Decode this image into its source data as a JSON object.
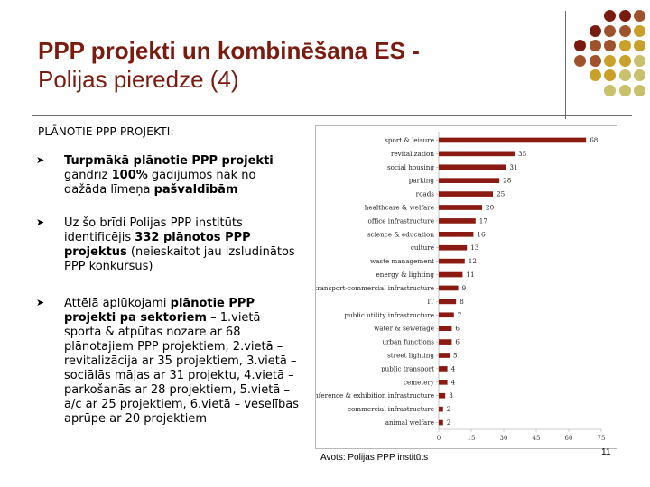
{
  "slide": {
    "title_line1": "PPP projekti un kombinēšana ES -",
    "title_line2": "Polijas pieredze (4)",
    "section_heading": "PLĀNOTIE PPP PROJEKTI:",
    "bullets": [
      [
        {
          "t": "Turpmākā plānotie PPP projekti",
          "b": true
        },
        {
          "t": " gandrīz ",
          "b": false
        },
        {
          "t": "100%",
          "b": true
        },
        {
          "t": " gadījumos nāk no dažāda līmeņa ",
          "b": false
        },
        {
          "t": "pašvaldībām",
          "b": true
        }
      ],
      [
        {
          "t": "Uz šo brīdi Polijas PPP institūts identificējis ",
          "b": false
        },
        {
          "t": "332 plānotos PPP projektus",
          "b": true
        },
        {
          "t": " (neieskaitot jau izsludinātos PPP konkursus)",
          "b": false
        }
      ],
      [
        {
          "t": "Attēlā aplūkojami ",
          "b": false
        },
        {
          "t": "plānotie PPP projekti pa sektoriem",
          "b": true
        },
        {
          "t": " – 1.vietā sporta & atpūtas nozare ar 68 plānotajiem PPP projektiem, 2.vietā – revitalizācija ar 35 projektiem, 3.vietā – sociālās mājas ar 31 projektu, 4.vietā – parkošanās ar 28 projektiem, 5.vietā – a/c ar 25 projektiem, 6.vietā – veselības aprūpe ar 20 projektiem",
          "b": false
        }
      ]
    ],
    "source": "Avots: Polijas PPP institūts",
    "page_number": "11",
    "bullet_icon": "arrowhead-bullet-icon"
  },
  "colors": {
    "title": "#7a1b10",
    "bar": "#8b1a12",
    "dots": [
      "#7a1b10",
      "#a0522d",
      "#c8a02a",
      "#c8c06a"
    ]
  },
  "chart_data": {
    "type": "bar",
    "orientation": "horizontal",
    "categories": [
      "sport & leisure",
      "revitalization",
      "social housing",
      "parking",
      "roads",
      "healthcare & welfare",
      "office infrastructure",
      "science & education",
      "culture",
      "waste management",
      "energy & lighting",
      "transport-commercial infrastructure",
      "IT",
      "public utility infrastructure",
      "water & sewerage",
      "urban functions",
      "street lighting",
      "public transport",
      "cemetery",
      "conference & exhibition infrastructure",
      "commercial infrastructure",
      "animal welfare"
    ],
    "values": [
      68,
      35,
      31,
      28,
      25,
      20,
      17,
      16,
      13,
      12,
      11,
      9,
      8,
      7,
      6,
      6,
      5,
      4,
      4,
      3,
      2,
      2
    ],
    "ticks": [
      0,
      15,
      30,
      45,
      60,
      75
    ],
    "xlim": [
      0,
      75
    ],
    "grid": false,
    "legend": "none",
    "title": "",
    "xlabel": "",
    "ylabel": ""
  }
}
